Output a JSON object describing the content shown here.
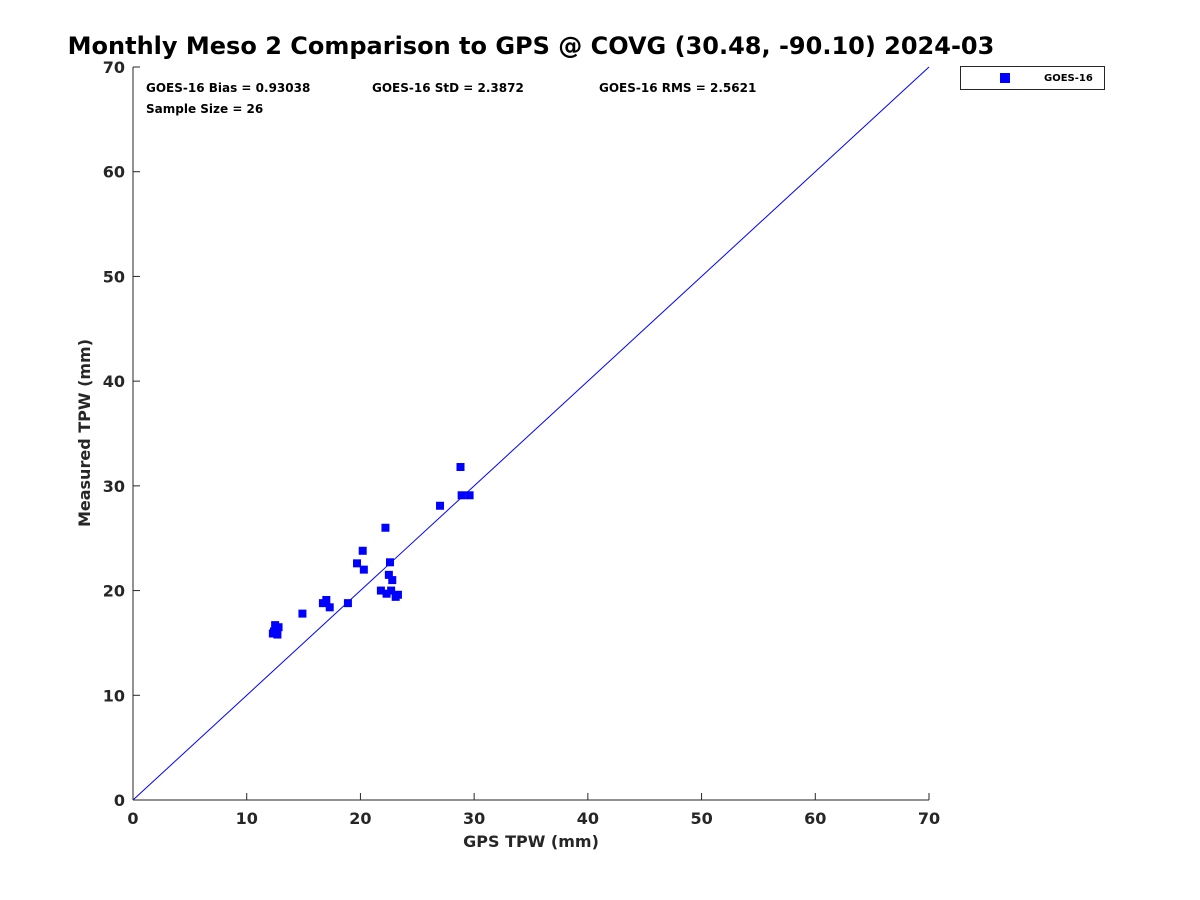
{
  "chart_data": {
    "type": "scatter",
    "title": "Monthly Meso 2 Comparison to GPS @ COVG (30.48, -90.10) 2024-03",
    "xlabel": "GPS TPW (mm)",
    "ylabel": "Measured TPW (mm)",
    "xlim": [
      0,
      70
    ],
    "ylim": [
      0,
      70
    ],
    "xticks": [
      "0",
      "10",
      "20",
      "30",
      "40",
      "50",
      "60",
      "70"
    ],
    "yticks": [
      "0",
      "10",
      "20",
      "30",
      "40",
      "50",
      "60",
      "70"
    ],
    "grid": false,
    "legend_position": "outside-top-right",
    "reference_line": {
      "x": [
        0,
        70
      ],
      "y": [
        0,
        70
      ],
      "color": "#0000ff"
    },
    "stats": {
      "bias": "GOES-16 Bias = 0.93038",
      "std": "GOES-16 StD = 2.3872",
      "rms": "GOES-16 RMS = 2.5621",
      "sample": "Sample Size = 26"
    },
    "series": [
      {
        "name": "GOES-16",
        "color": "#0000ff",
        "marker": "square",
        "x": [
          12.3,
          12.5,
          12.8,
          12.4,
          12.7,
          14.9,
          16.7,
          17.0,
          17.3,
          18.9,
          19.7,
          20.2,
          20.3,
          21.8,
          22.2,
          22.3,
          22.5,
          22.6,
          22.7,
          22.8,
          23.1,
          23.3,
          27.0,
          28.8,
          28.9,
          29.6
        ],
        "y": [
          15.9,
          16.7,
          16.5,
          16.1,
          15.8,
          17.8,
          18.8,
          19.1,
          18.4,
          18.8,
          22.6,
          23.8,
          22.0,
          20.0,
          26.0,
          19.7,
          21.5,
          22.7,
          20.0,
          21.0,
          19.4,
          19.6,
          28.1,
          31.8,
          29.1,
          29.1
        ]
      }
    ]
  }
}
